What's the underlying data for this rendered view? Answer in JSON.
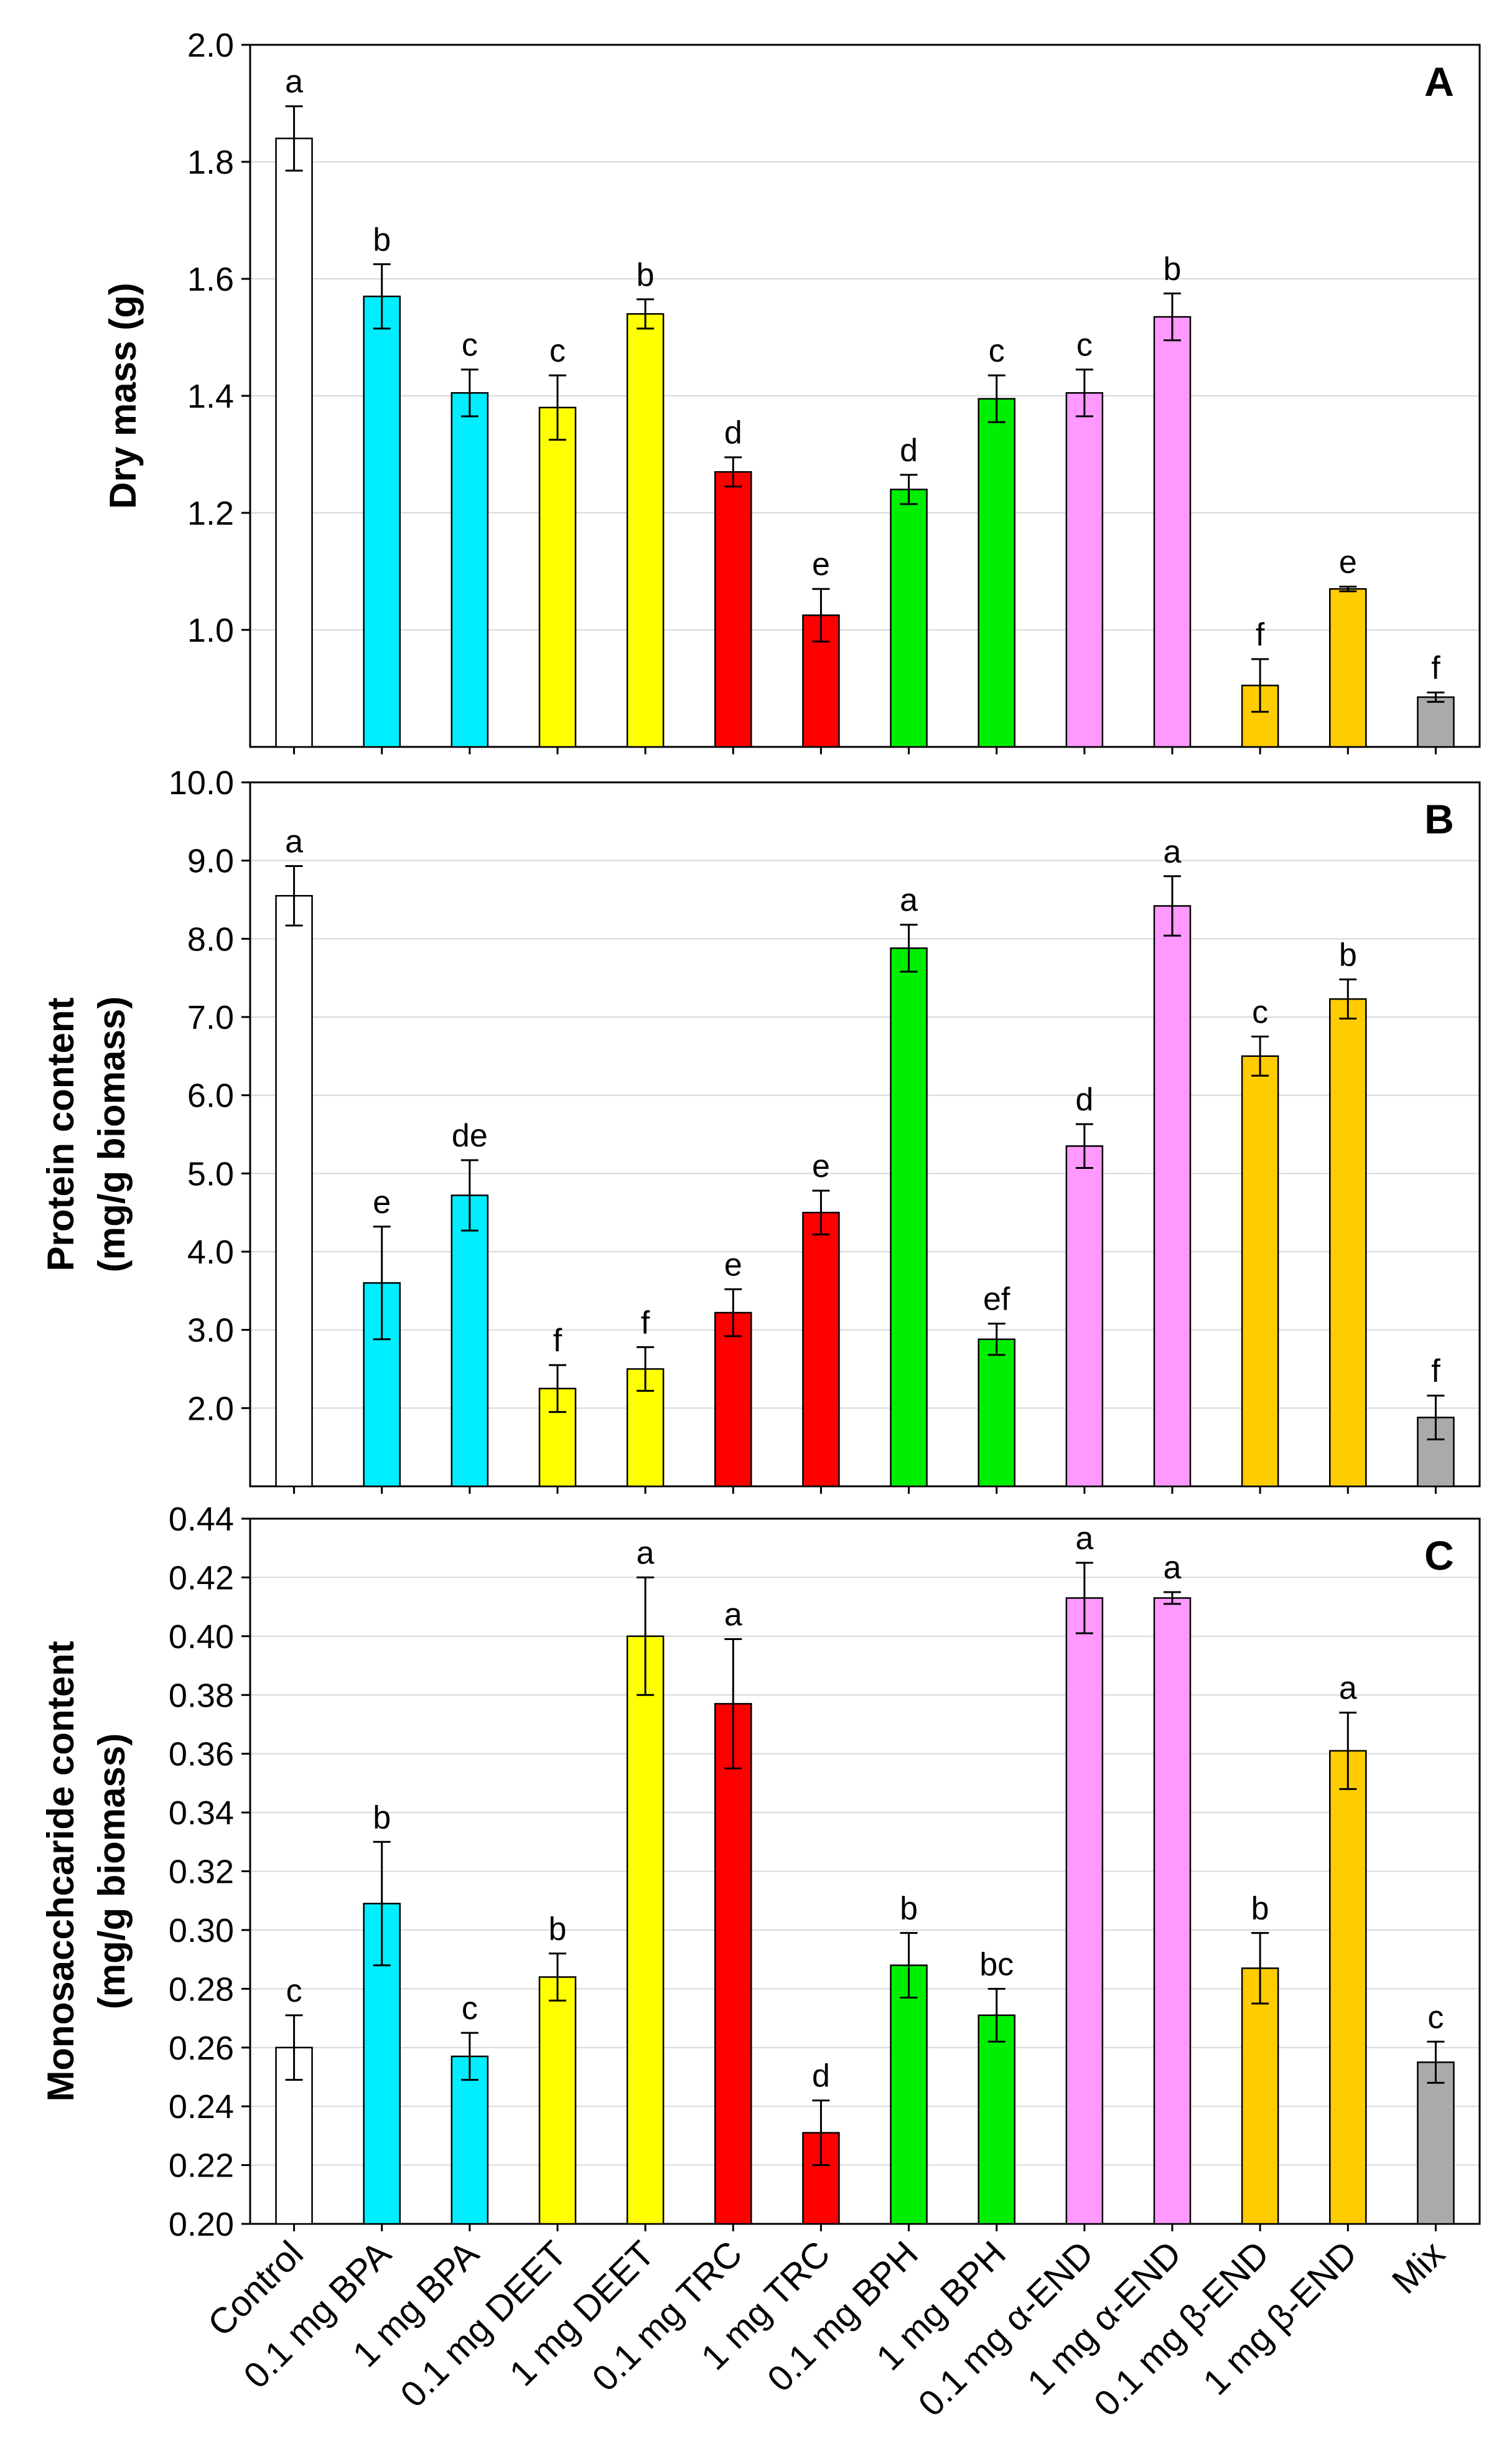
{
  "chart_data": [
    {
      "type": "bar",
      "panel_label": "A",
      "title": "",
      "xlabel": "",
      "ylabel": "Dry mass (g)",
      "ylim": [
        0.8,
        2.0
      ],
      "yticks": [
        1.0,
        1.2,
        1.4,
        1.6,
        1.8,
        2.0
      ],
      "ytick_labels": [
        "1.0",
        "1.2",
        "1.4",
        "1.6",
        "1.8",
        "2.0"
      ],
      "grid": true,
      "categories": [
        "Control",
        "0.1 mg BPA",
        "1 mg BPA",
        "0.1 mg DEET",
        "1 mg DEET",
        "0.1 mg TRC",
        "1 mg TRC",
        "0.1 mg BPH",
        "1 mg BPH",
        "0.1 mg α-END",
        "1 mg α-END",
        "0.1 mg β-END",
        "1 mg β-END",
        "Mix"
      ],
      "values": [
        1.84,
        1.57,
        1.405,
        1.38,
        1.54,
        1.27,
        1.025,
        1.24,
        1.395,
        1.405,
        1.535,
        0.905,
        1.07,
        0.885
      ],
      "errors": [
        0.055,
        0.055,
        0.04,
        0.055,
        0.025,
        0.025,
        0.045,
        0.025,
        0.04,
        0.04,
        0.04,
        0.045,
        0.004,
        0.008
      ],
      "letters": [
        "a",
        "b",
        "c",
        "c",
        "b",
        "d",
        "e",
        "d",
        "c",
        "c",
        "b",
        "f",
        "e",
        "f"
      ]
    },
    {
      "type": "bar",
      "panel_label": "B",
      "title": "",
      "xlabel": "",
      "ylabel": [
        "Protein content",
        "(mg/g biomass)"
      ],
      "ylim": [
        1.0,
        10.0
      ],
      "yticks": [
        2.0,
        3.0,
        4.0,
        5.0,
        6.0,
        7.0,
        8.0,
        9.0,
        10.0
      ],
      "ytick_labels": [
        "2.0",
        "3.0",
        "4.0",
        "5.0",
        "6.0",
        "7.0",
        "8.0",
        "9.0",
        "10.0"
      ],
      "grid": true,
      "categories": [
        "Control",
        "0.1 mg BPA",
        "1 mg BPA",
        "0.1 mg DEET",
        "1 mg DEET",
        "0.1 mg TRC",
        "1 mg TRC",
        "0.1 mg BPH",
        "1 mg BPH",
        "0.1 mg α-END",
        "1 mg α-END",
        "0.1 mg β-END",
        "1 mg β-END",
        "Mix"
      ],
      "values": [
        8.55,
        3.6,
        4.72,
        2.25,
        2.5,
        3.22,
        4.5,
        7.88,
        2.88,
        5.35,
        8.42,
        6.5,
        7.23,
        1.88
      ],
      "errors": [
        0.38,
        0.72,
        0.45,
        0.3,
        0.28,
        0.3,
        0.28,
        0.3,
        0.2,
        0.28,
        0.38,
        0.25,
        0.25,
        0.28
      ],
      "letters": [
        "a",
        "e",
        "de",
        "f",
        "f",
        "e",
        "e",
        "a",
        "ef",
        "d",
        "a",
        "c",
        "b",
        "f"
      ]
    },
    {
      "type": "bar",
      "panel_label": "C",
      "title": "",
      "xlabel": "",
      "ylabel": [
        "Monosacchcaride content",
        "(mg/g biomass)"
      ],
      "ylim": [
        0.2,
        0.44
      ],
      "yticks": [
        0.2,
        0.22,
        0.24,
        0.26,
        0.28,
        0.3,
        0.32,
        0.34,
        0.36,
        0.38,
        0.4,
        0.42,
        0.44
      ],
      "ytick_labels": [
        "0.20",
        "0.22",
        "0.24",
        "0.26",
        "0.28",
        "0.30",
        "0.32",
        "0.34",
        "0.36",
        "0.38",
        "0.40",
        "0.42",
        "0.44"
      ],
      "grid": true,
      "categories": [
        "Control",
        "0.1 mg BPA",
        "1 mg BPA",
        "0.1 mg DEET",
        "1 mg DEET",
        "0.1 mg TRC",
        "1 mg TRC",
        "0.1 mg BPH",
        "1 mg BPH",
        "0.1 mg α-END",
        "1 mg α-END",
        "0.1 mg β-END",
        "1 mg β-END",
        "Mix"
      ],
      "values": [
        0.26,
        0.309,
        0.257,
        0.284,
        0.4,
        0.377,
        0.231,
        0.288,
        0.271,
        0.413,
        0.413,
        0.287,
        0.361,
        0.255
      ],
      "errors": [
        0.011,
        0.021,
        0.008,
        0.008,
        0.02,
        0.022,
        0.011,
        0.011,
        0.009,
        0.012,
        0.002,
        0.012,
        0.013,
        0.007
      ],
      "letters": [
        "c",
        "b",
        "c",
        "b",
        "a",
        "a",
        "d",
        "b",
        "bc",
        "a",
        "a",
        "b",
        "a",
        "c"
      ]
    }
  ],
  "bar_colors": [
    "#ffffff",
    "#00eeff",
    "#00eeff",
    "#ffff00",
    "#ffff00",
    "#ff0000",
    "#ff0000",
    "#00ee00",
    "#00ee00",
    "#ff99ff",
    "#ff99ff",
    "#ffcc00",
    "#ffcc00",
    "#aaaaaa"
  ]
}
